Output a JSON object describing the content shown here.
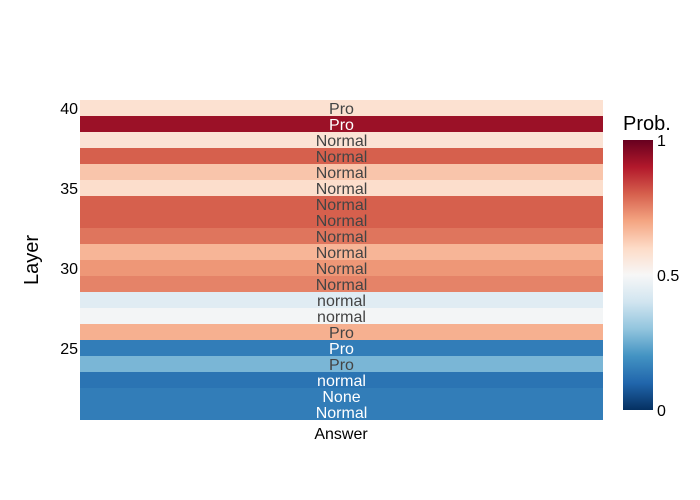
{
  "chart_data": {
    "type": "heatmap",
    "title": "",
    "xlabel": "Answer",
    "ylabel": "Layer",
    "x_categories": [
      "Answer"
    ],
    "y_range": [
      20.5,
      40.5
    ],
    "y_ticks": [
      "25",
      "30",
      "35",
      "40"
    ],
    "colorscale": [
      "#053061",
      "#2166ac",
      "#4393c3",
      "#92c5de",
      "#d1e5f0",
      "#f7f7f7",
      "#fddbc7",
      "#f4a582",
      "#d6604d",
      "#b2182b",
      "#67001f"
    ],
    "colorbar": {
      "title": "Prob.",
      "range": [
        0,
        1
      ],
      "ticks": [
        "0",
        "0.5",
        "1"
      ]
    },
    "rows": [
      {
        "layer": 40,
        "value": 0.58,
        "text": "Pro"
      },
      {
        "layer": 39,
        "value": 0.93,
        "text": "Pro"
      },
      {
        "layer": 38,
        "value": 0.57,
        "text": "Normal"
      },
      {
        "layer": 37,
        "value": 0.8,
        "text": "Normal"
      },
      {
        "layer": 36,
        "value": 0.64,
        "text": "Normal"
      },
      {
        "layer": 35,
        "value": 0.59,
        "text": "Normal"
      },
      {
        "layer": 34,
        "value": 0.8,
        "text": "Normal"
      },
      {
        "layer": 33,
        "value": 0.8,
        "text": "Normal"
      },
      {
        "layer": 32,
        "value": 0.77,
        "text": "Normal"
      },
      {
        "layer": 31,
        "value": 0.67,
        "text": "Normal"
      },
      {
        "layer": 30,
        "value": 0.72,
        "text": "Normal"
      },
      {
        "layer": 29,
        "value": 0.75,
        "text": "Normal"
      },
      {
        "layer": 28,
        "value": 0.44,
        "text": "normal"
      },
      {
        "layer": 27,
        "value": 0.49,
        "text": "normal"
      },
      {
        "layer": 26,
        "value": 0.68,
        "text": "Pro"
      },
      {
        "layer": 25,
        "value": 0.15,
        "text": "Pro"
      },
      {
        "layer": 24,
        "value": 0.27,
        "text": "Pro"
      },
      {
        "layer": 23,
        "value": 0.13,
        "text": "normal"
      },
      {
        "layer": 22,
        "value": 0.15,
        "text": "None"
      },
      {
        "layer": 21,
        "value": 0.15,
        "text": "Normal"
      }
    ]
  }
}
